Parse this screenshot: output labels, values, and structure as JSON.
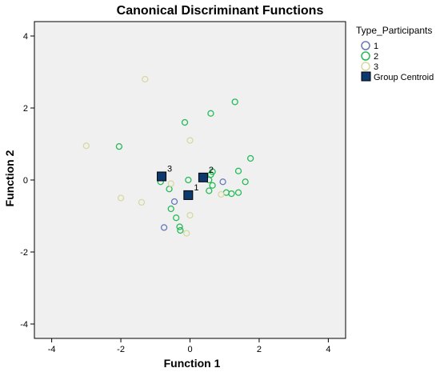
{
  "chart_data": {
    "type": "scatter",
    "title": "Canonical Discriminant Functions",
    "xlabel": "Function 1",
    "ylabel": "Function 2",
    "xlim": [
      -4.5,
      4.5
    ],
    "ylim": [
      -4.4,
      4.4
    ],
    "xticks": [
      -4,
      -2,
      0,
      2,
      4
    ],
    "yticks": [
      -4,
      -2,
      0,
      2,
      4
    ],
    "tick_labels_x": [
      "-4",
      "-2",
      "0",
      "2",
      "4"
    ],
    "tick_labels_y": [
      "-4",
      "-2",
      "0",
      "2",
      "4"
    ],
    "grid": false,
    "plot_background": "#f0f0f0",
    "legend_position": "right",
    "legend": {
      "title": "Type_Participants",
      "entries": [
        {
          "label": "1",
          "color": "#6677bb",
          "marker": "circle"
        },
        {
          "label": "2",
          "color": "#22bb55",
          "marker": "circle"
        },
        {
          "label": "3",
          "color": "#d8d8a0",
          "marker": "circle"
        },
        {
          "label": "Group Centroid",
          "color": "#0d3a6e",
          "marker": "square"
        }
      ]
    },
    "series": [
      {
        "name": "1",
        "color": "#6677bb",
        "points": [
          [
            0.95,
            -0.05
          ],
          [
            -0.45,
            -0.6
          ],
          [
            -0.75,
            -1.32
          ]
        ]
      },
      {
        "name": "2",
        "color": "#22bb55",
        "points": [
          [
            1.3,
            2.17
          ],
          [
            0.6,
            1.85
          ],
          [
            -0.15,
            1.6
          ],
          [
            -2.05,
            0.93
          ],
          [
            1.75,
            0.6
          ],
          [
            1.4,
            0.25
          ],
          [
            0.65,
            0.23
          ],
          [
            0.6,
            0.15
          ],
          [
            -0.05,
            0.0
          ],
          [
            0.55,
            0.0
          ],
          [
            1.6,
            -0.05
          ],
          [
            0.65,
            -0.15
          ],
          [
            0.55,
            -0.3
          ],
          [
            1.05,
            -0.35
          ],
          [
            1.2,
            -0.38
          ],
          [
            1.4,
            -0.35
          ],
          [
            -0.6,
            -0.25
          ],
          [
            -0.55,
            -0.8
          ],
          [
            -0.4,
            -1.05
          ],
          [
            -0.3,
            -1.3
          ],
          [
            -0.28,
            -1.4
          ],
          [
            -0.85,
            -0.05
          ]
        ]
      },
      {
        "name": "3",
        "color": "#d8d8a0",
        "points": [
          [
            -1.3,
            2.8
          ],
          [
            -3.0,
            0.95
          ],
          [
            0.0,
            1.1
          ],
          [
            -0.55,
            -0.1
          ],
          [
            0.9,
            -0.4
          ],
          [
            -2.0,
            -0.5
          ],
          [
            -1.4,
            -0.62
          ],
          [
            0.0,
            -0.98
          ],
          [
            -0.1,
            -1.48
          ]
        ]
      }
    ],
    "centroids": [
      {
        "label": "1",
        "x": -0.05,
        "y": -0.42
      },
      {
        "label": "2",
        "x": 0.38,
        "y": 0.07
      },
      {
        "label": "3",
        "x": -0.82,
        "y": 0.1
      }
    ]
  }
}
